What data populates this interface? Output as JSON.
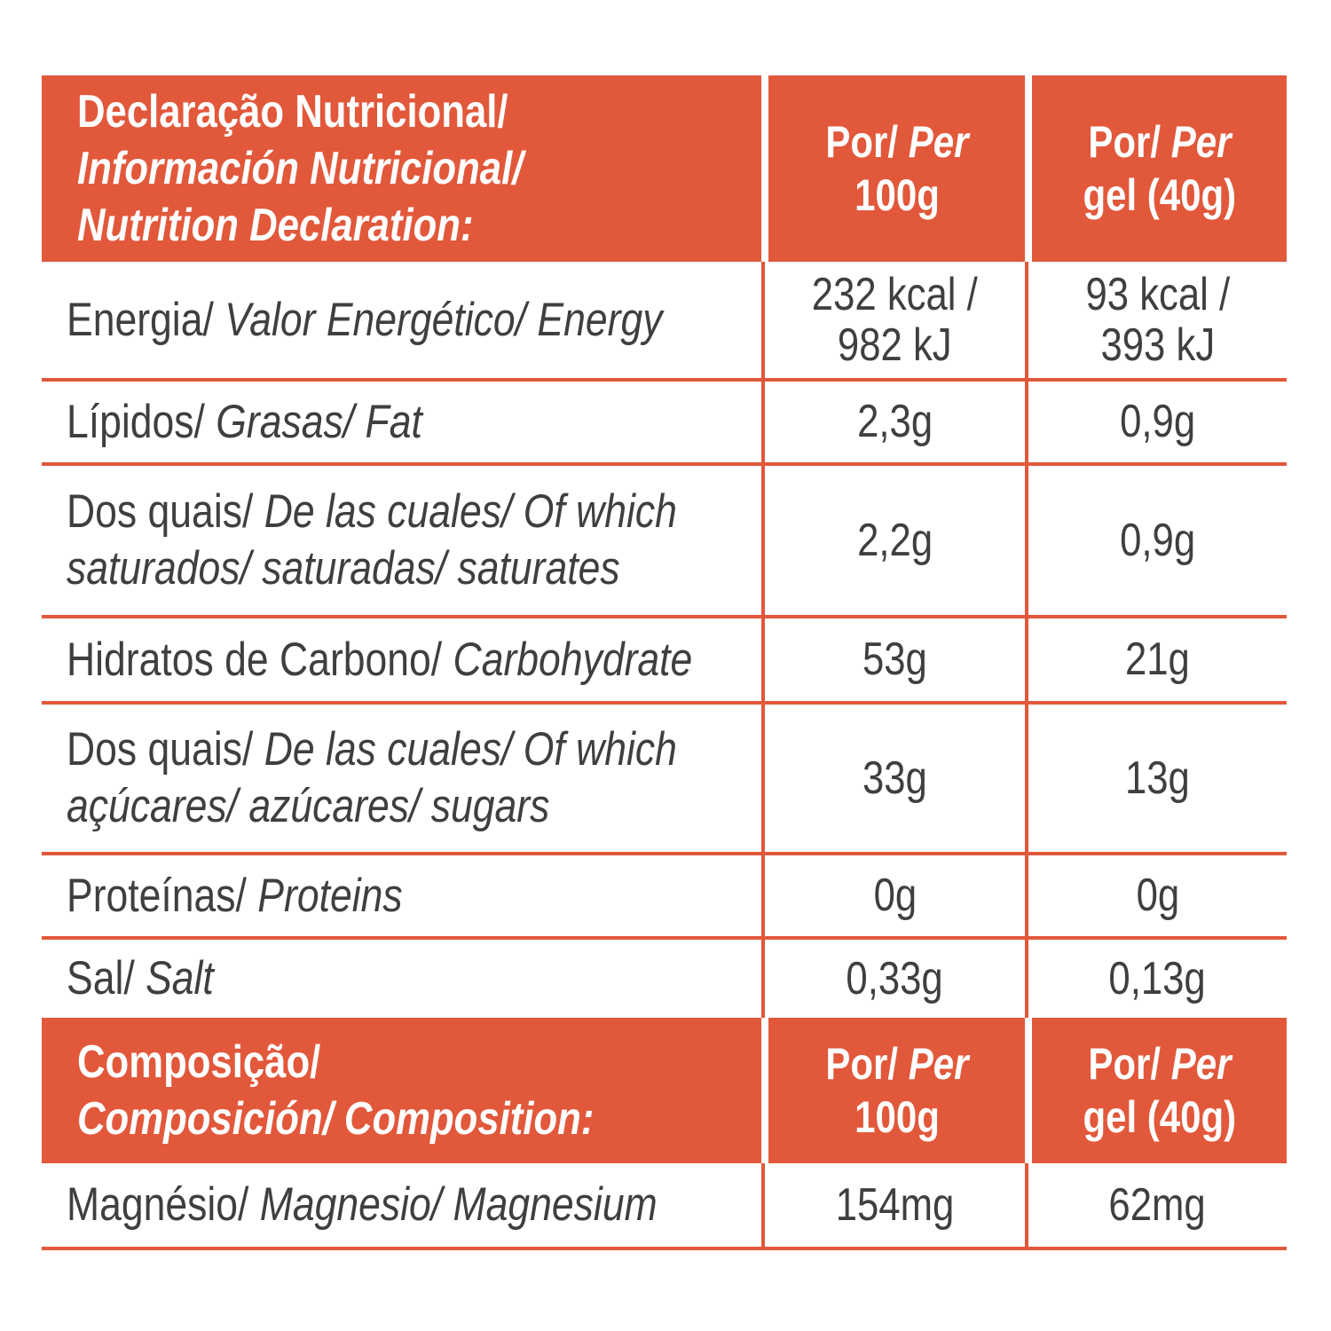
{
  "colors": {
    "accent": "#E2583B",
    "text": "#3F3F3F",
    "header_text": "#FFFFFF",
    "background": "#FFFFFF"
  },
  "nutrition_header": {
    "title": [
      [
        {
          "t": "Declaração Nutricional/",
          "i": false
        }
      ],
      [
        {
          "t": "Información Nutricional/",
          "i": true
        }
      ],
      [
        {
          "t": "Nutrition Declaration:",
          "i": true
        }
      ]
    ],
    "per_100g": [
      [
        {
          "t": "Por/",
          "i": false
        },
        {
          "t": " Per",
          "i": true
        }
      ],
      [
        {
          "t": "100g",
          "i": false
        }
      ]
    ],
    "per_gel": [
      [
        {
          "t": "Por/",
          "i": false
        },
        {
          "t": " Per",
          "i": true
        }
      ],
      [
        {
          "t": "gel (40g)",
          "i": false
        }
      ]
    ]
  },
  "nutrition_rows": [
    {
      "id": "energy",
      "label": [
        [
          {
            "t": "Energia/",
            "i": false
          },
          {
            "t": " Valor Energético/ Energy",
            "i": true
          }
        ]
      ],
      "per_100g": "232 kcal /\n982 kJ",
      "per_gel": "93 kcal /\n393 kJ"
    },
    {
      "id": "fat",
      "label": [
        [
          {
            "t": "Lípidos/",
            "i": false
          },
          {
            "t": " Grasas/ Fat",
            "i": true
          }
        ]
      ],
      "per_100g": "2,3g",
      "per_gel": "0,9g"
    },
    {
      "id": "saturates",
      "label": [
        [
          {
            "t": "Dos quais/",
            "i": false
          },
          {
            "t": " De las cuales/ Of which",
            "i": true
          }
        ],
        [
          {
            "t": "saturados/ saturadas/ saturates",
            "i": true
          }
        ]
      ],
      "per_100g": "2,2g",
      "per_gel": "0,9g"
    },
    {
      "id": "carbohydrate",
      "label": [
        [
          {
            "t": "Hidratos de Carbono/",
            "i": false
          },
          {
            "t": " Carbohydrate",
            "i": true
          }
        ]
      ],
      "per_100g": "53g",
      "per_gel": "21g"
    },
    {
      "id": "sugars",
      "label": [
        [
          {
            "t": "Dos quais/",
            "i": false
          },
          {
            "t": " De las cuales/ Of which",
            "i": true
          }
        ],
        [
          {
            "t": "açúcares/ azúcares/ sugars",
            "i": true
          }
        ]
      ],
      "per_100g": "33g",
      "per_gel": "13g"
    },
    {
      "id": "proteins",
      "label": [
        [
          {
            "t": "Proteínas/",
            "i": false
          },
          {
            "t": " Proteins",
            "i": true
          }
        ]
      ],
      "per_100g": "0g",
      "per_gel": "0g"
    },
    {
      "id": "salt",
      "label": [
        [
          {
            "t": "Sal/",
            "i": false
          },
          {
            "t": " Salt",
            "i": true
          }
        ]
      ],
      "per_100g": "0,33g",
      "per_gel": "0,13g"
    }
  ],
  "composition_header": {
    "title": [
      [
        {
          "t": "Composição/",
          "i": false
        }
      ],
      [
        {
          "t": "Composición/ Composition:",
          "i": true
        }
      ]
    ],
    "per_100g": [
      [
        {
          "t": "Por/",
          "i": false
        },
        {
          "t": " Per",
          "i": true
        }
      ],
      [
        {
          "t": "100g",
          "i": false
        }
      ]
    ],
    "per_gel": [
      [
        {
          "t": "Por/",
          "i": false
        },
        {
          "t": " Per",
          "i": true
        }
      ],
      [
        {
          "t": "gel (40g)",
          "i": false
        }
      ]
    ]
  },
  "composition_rows": [
    {
      "id": "magnesium",
      "label": [
        [
          {
            "t": "Magnésio/",
            "i": false
          },
          {
            "t": " Magnesio/ Magnesium",
            "i": true
          }
        ]
      ],
      "per_100g": "154mg",
      "per_gel": "62mg"
    }
  ]
}
